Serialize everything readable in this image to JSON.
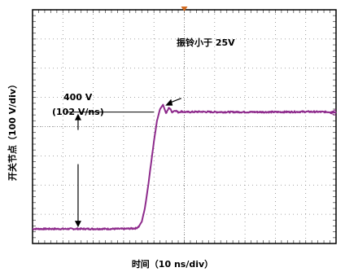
{
  "chart_data": {
    "type": "line",
    "title": "",
    "xlabel": "时间（10 ns/div）",
    "ylabel": "开关节点（100 V/div）",
    "x_divisions": 10,
    "y_divisions": 8,
    "grid": true,
    "xlim": [
      0,
      100
    ],
    "ylim": [
      -50,
      750
    ],
    "series": [
      {
        "color": "#8e2b8c",
        "x": [
          0,
          10,
          20,
          25,
          30,
          34,
          35,
          36,
          37,
          38,
          39,
          40,
          41,
          42,
          43,
          44,
          45,
          46,
          47,
          48,
          49,
          50,
          52,
          55,
          60,
          70,
          80,
          90,
          100
        ],
        "y": [
          0,
          0,
          0,
          0,
          0,
          2,
          8,
          25,
          70,
          140,
          220,
          300,
          370,
          410,
          425,
          395,
          416,
          400,
          406,
          399,
          402,
          400,
          400,
          401,
          400,
          400,
          400,
          401,
          400
        ]
      }
    ],
    "annotations": {
      "step_value": "400 V",
      "slew_rate": "(102 V/ns)",
      "ringing_note": "振铃小于 25V"
    },
    "trigger_marker_x": 50,
    "right_edge_marker": "⋞"
  },
  "colors": {
    "trace": "#8e2b8c",
    "grid": "#888888",
    "frame": "#000000",
    "trigger": "#d2691e"
  }
}
